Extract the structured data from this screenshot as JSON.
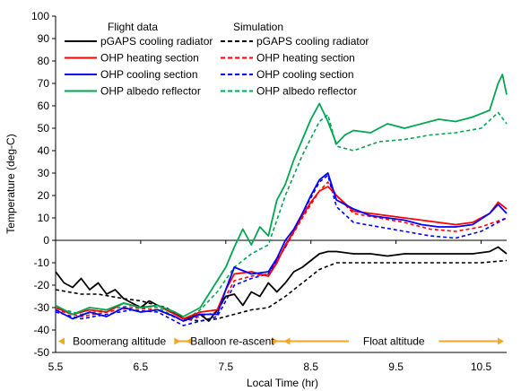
{
  "chart_data": {
    "type": "line",
    "title": "",
    "xlabel": "Local Time (hr)",
    "ylabel": "Temperature (deg-C)",
    "xlim": [
      5.5,
      10.8
    ],
    "ylim": [
      -50,
      100
    ],
    "x_ticks": [
      "5.5",
      "6.5",
      "7.5",
      "8.5",
      "9.5",
      "10.5"
    ],
    "y_ticks": [
      "-50",
      "-40",
      "-30",
      "-20",
      "-10",
      "0",
      "10",
      "20",
      "30",
      "40",
      "50",
      "60",
      "70",
      "80",
      "90",
      "100"
    ],
    "grid": false,
    "legend_headers": {
      "flight": "Flight data",
      "simulation": "Simulation"
    },
    "legend_position": "top-left",
    "phases": [
      {
        "label": "Boomerang altitude",
        "start": 5.5,
        "end": 7.0
      },
      {
        "label": "Balloon re-ascent",
        "start": 7.0,
        "end": 8.15
      },
      {
        "label": "Float altitude",
        "start": 8.15,
        "end": 10.8
      }
    ],
    "phase_arrow_y": -45,
    "phase_color": "#f5a623",
    "series": [
      {
        "name": "pGAPS cooling radiator",
        "kind": "flight",
        "color": "#000000",
        "dashed": false,
        "x": [
          5.5,
          5.6,
          5.7,
          5.8,
          5.9,
          6.0,
          6.1,
          6.2,
          6.3,
          6.4,
          6.5,
          6.6,
          6.7,
          6.8,
          6.9,
          7.0,
          7.1,
          7.2,
          7.3,
          7.4,
          7.5,
          7.6,
          7.7,
          7.8,
          7.9,
          8.0,
          8.1,
          8.2,
          8.3,
          8.4,
          8.5,
          8.6,
          8.7,
          8.8,
          9.0,
          9.2,
          9.4,
          9.6,
          9.8,
          10.0,
          10.2,
          10.4,
          10.6,
          10.7,
          10.8
        ],
        "y": [
          -14,
          -19,
          -21,
          -17,
          -22,
          -19,
          -24,
          -22,
          -26,
          -28,
          -30,
          -27,
          -29,
          -31,
          -32,
          -35,
          -34,
          -33,
          -36,
          -31,
          -25,
          -24,
          -29,
          -23,
          -25,
          -19,
          -23,
          -19,
          -14,
          -12,
          -9,
          -6,
          -5,
          -5,
          -6,
          -6,
          -7,
          -6,
          -6,
          -6,
          -6,
          -6,
          -5,
          -3,
          -6
        ]
      },
      {
        "name": "pGAPS cooling radiator",
        "kind": "simulation",
        "color": "#000000",
        "dashed": true,
        "x": [
          5.5,
          5.8,
          6.0,
          6.3,
          6.5,
          6.8,
          7.0,
          7.2,
          7.4,
          7.6,
          7.8,
          8.0,
          8.2,
          8.4,
          8.6,
          8.8,
          9.0,
          9.5,
          10.0,
          10.5,
          10.8
        ],
        "y": [
          -22,
          -24,
          -24,
          -26,
          -27,
          -30,
          -35,
          -36,
          -35,
          -33,
          -31,
          -30,
          -25,
          -19,
          -13,
          -10,
          -10,
          -10,
          -10,
          -10,
          -9
        ]
      },
      {
        "name": "OHP heating section",
        "kind": "flight",
        "color": "#ff0000",
        "dashed": false,
        "x": [
          5.5,
          5.7,
          5.9,
          6.1,
          6.3,
          6.5,
          6.7,
          6.9,
          7.0,
          7.2,
          7.4,
          7.5,
          7.6,
          7.8,
          8.0,
          8.1,
          8.2,
          8.3,
          8.4,
          8.5,
          8.6,
          8.7,
          8.8,
          9.0,
          9.2,
          9.4,
          9.6,
          9.8,
          10.0,
          10.2,
          10.4,
          10.6,
          10.7,
          10.8
        ],
        "y": [
          -30,
          -33,
          -31,
          -32,
          -28,
          -30,
          -29,
          -33,
          -35,
          -32,
          -31,
          -22,
          -15,
          -14,
          -16,
          -10,
          -2,
          4,
          11,
          17,
          22,
          24,
          20,
          13,
          12,
          11,
          10,
          9,
          8,
          7,
          8,
          12,
          17,
          14
        ]
      },
      {
        "name": "OHP heating section",
        "kind": "simulation",
        "color": "#ff0000",
        "dashed": true,
        "x": [
          5.5,
          5.8,
          6.1,
          6.4,
          6.7,
          7.0,
          7.2,
          7.4,
          7.6,
          7.8,
          8.0,
          8.2,
          8.4,
          8.6,
          8.7,
          8.8,
          9.0,
          9.3,
          9.6,
          9.9,
          10.2,
          10.5,
          10.8
        ],
        "y": [
          -31,
          -34,
          -32,
          -30,
          -31,
          -36,
          -34,
          -32,
          -18,
          -16,
          -15,
          -3,
          10,
          22,
          26,
          20,
          12,
          10,
          8,
          5,
          4,
          6,
          10
        ]
      },
      {
        "name": "OHP cooling section",
        "kind": "flight",
        "color": "#0000ff",
        "dashed": false,
        "x": [
          5.5,
          5.7,
          5.9,
          6.1,
          6.3,
          6.5,
          6.7,
          6.9,
          7.0,
          7.2,
          7.4,
          7.5,
          7.6,
          7.8,
          8.0,
          8.1,
          8.2,
          8.3,
          8.4,
          8.5,
          8.6,
          8.7,
          8.8,
          9.0,
          9.2,
          9.4,
          9.6,
          9.8,
          10.0,
          10.2,
          10.4,
          10.6,
          10.7,
          10.8
        ],
        "y": [
          -31,
          -35,
          -32,
          -34,
          -30,
          -32,
          -31,
          -34,
          -36,
          -33,
          -33,
          -22,
          -12,
          -15,
          -14,
          -8,
          0,
          5,
          12,
          20,
          27,
          30,
          18,
          14,
          11,
          10,
          9,
          7,
          6,
          6,
          7,
          12,
          16,
          12
        ]
      },
      {
        "name": "OHP cooling section",
        "kind": "simulation",
        "color": "#0000ff",
        "dashed": true,
        "x": [
          5.5,
          5.8,
          6.1,
          6.4,
          6.7,
          7.0,
          7.2,
          7.4,
          7.6,
          7.8,
          8.0,
          8.2,
          8.4,
          8.6,
          8.7,
          8.8,
          9.0,
          9.3,
          9.6,
          9.9,
          10.2,
          10.5,
          10.8
        ],
        "y": [
          -32,
          -35,
          -33,
          -31,
          -32,
          -38,
          -36,
          -34,
          -20,
          -17,
          -15,
          -3,
          12,
          26,
          29,
          15,
          8,
          6,
          4,
          2,
          1,
          4,
          10
        ]
      },
      {
        "name": "OHP albedo reflector",
        "kind": "flight",
        "color": "#00a651",
        "dashed": false,
        "x": [
          5.5,
          5.7,
          5.9,
          6.1,
          6.3,
          6.5,
          6.7,
          6.9,
          7.0,
          7.2,
          7.3,
          7.5,
          7.6,
          7.7,
          7.8,
          7.9,
          8.0,
          8.1,
          8.2,
          8.3,
          8.4,
          8.5,
          8.6,
          8.7,
          8.8,
          8.9,
          9.0,
          9.2,
          9.4,
          9.6,
          9.8,
          10.0,
          10.2,
          10.4,
          10.6,
          10.7,
          10.75,
          10.8
        ],
        "y": [
          -29,
          -33,
          -30,
          -31,
          -28,
          -30,
          -29,
          -32,
          -34,
          -30,
          -24,
          -12,
          -3,
          5,
          -2,
          6,
          2,
          18,
          25,
          36,
          45,
          54,
          61,
          53,
          43,
          47,
          49,
          48,
          52,
          50,
          52,
          54,
          53,
          55,
          58,
          70,
          74,
          65
        ]
      },
      {
        "name": "OHP albedo reflector",
        "kind": "simulation",
        "color": "#00a651",
        "dashed": true,
        "x": [
          5.5,
          5.8,
          6.1,
          6.4,
          6.7,
          7.0,
          7.2,
          7.4,
          7.6,
          7.8,
          8.0,
          8.2,
          8.4,
          8.6,
          8.7,
          8.8,
          9.0,
          9.3,
          9.6,
          9.9,
          10.2,
          10.5,
          10.7,
          10.8
        ],
        "y": [
          -30,
          -33,
          -31,
          -29,
          -30,
          -36,
          -31,
          -23,
          -12,
          -6,
          -2,
          20,
          38,
          53,
          56,
          42,
          40,
          44,
          45,
          47,
          48,
          50,
          57,
          52
        ]
      }
    ]
  }
}
